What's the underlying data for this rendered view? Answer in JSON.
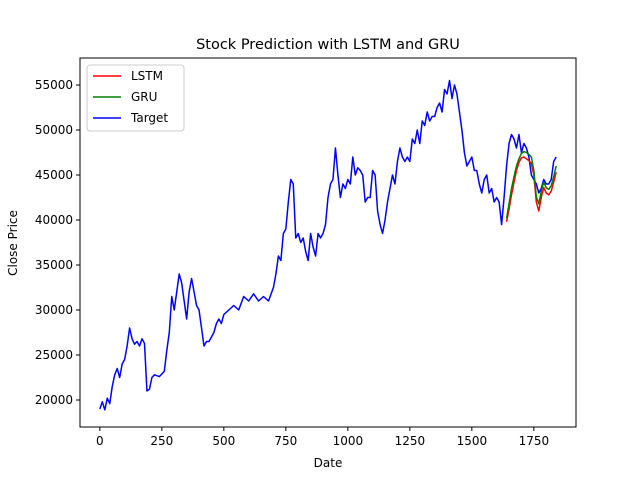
{
  "chart_data": {
    "type": "line",
    "title": "Stock Prediction with LSTM and GRU",
    "xlabel": "Date",
    "ylabel": "Close Price",
    "xlim": [
      -80,
      1920
    ],
    "ylim": [
      17000,
      58000
    ],
    "xticks": [
      0,
      250,
      500,
      750,
      1000,
      1250,
      1500,
      1750
    ],
    "yticks": [
      20000,
      25000,
      30000,
      35000,
      40000,
      45000,
      50000,
      55000
    ],
    "grid": false,
    "legend_position": "top-left",
    "series": [
      {
        "name": "LSTM",
        "color": "#ff0000",
        "x": [
          1640,
          1650,
          1660,
          1670,
          1680,
          1690,
          1700,
          1710,
          1720,
          1730,
          1740,
          1750,
          1760,
          1770,
          1780,
          1790,
          1800,
          1810,
          1820,
          1830,
          1840
        ],
        "y": [
          39800,
          41200,
          42800,
          44200,
          45500,
          46400,
          46900,
          47000,
          46800,
          46600,
          46300,
          45000,
          42000,
          41000,
          42500,
          43600,
          43000,
          42800,
          43200,
          44200,
          45300
        ]
      },
      {
        "name": "GRU",
        "color": "#008000",
        "x": [
          1640,
          1650,
          1660,
          1670,
          1680,
          1690,
          1700,
          1710,
          1720,
          1730,
          1740,
          1750,
          1760,
          1770,
          1780,
          1790,
          1800,
          1810,
          1820,
          1830,
          1840
        ],
        "y": [
          40200,
          41800,
          43500,
          44800,
          46000,
          46800,
          47400,
          47600,
          47500,
          47300,
          47000,
          45500,
          42600,
          41800,
          43200,
          44200,
          43600,
          43400,
          43800,
          44800,
          46000
        ]
      },
      {
        "name": "Target",
        "color": "#0000ff",
        "x": [
          0,
          10,
          20,
          30,
          40,
          50,
          60,
          70,
          80,
          90,
          100,
          110,
          120,
          130,
          140,
          150,
          160,
          170,
          180,
          190,
          200,
          210,
          220,
          240,
          260,
          270,
          280,
          290,
          300,
          310,
          320,
          330,
          340,
          350,
          360,
          370,
          380,
          390,
          400,
          410,
          420,
          430,
          440,
          450,
          460,
          470,
          480,
          490,
          500,
          520,
          540,
          560,
          580,
          600,
          620,
          640,
          660,
          680,
          700,
          710,
          720,
          730,
          740,
          750,
          760,
          770,
          780,
          790,
          800,
          810,
          820,
          830,
          840,
          850,
          860,
          870,
          880,
          890,
          900,
          910,
          920,
          930,
          940,
          950,
          960,
          970,
          980,
          990,
          1000,
          1010,
          1020,
          1030,
          1040,
          1050,
          1060,
          1070,
          1080,
          1090,
          1100,
          1110,
          1120,
          1130,
          1140,
          1150,
          1160,
          1170,
          1180,
          1190,
          1200,
          1210,
          1220,
          1230,
          1240,
          1250,
          1260,
          1270,
          1280,
          1290,
          1300,
          1310,
          1320,
          1330,
          1340,
          1350,
          1360,
          1370,
          1380,
          1390,
          1400,
          1410,
          1420,
          1430,
          1440,
          1450,
          1460,
          1470,
          1480,
          1490,
          1500,
          1510,
          1520,
          1530,
          1540,
          1550,
          1560,
          1570,
          1580,
          1590,
          1600,
          1610,
          1620,
          1630,
          1640,
          1650,
          1660,
          1670,
          1680,
          1690,
          1700,
          1710,
          1720,
          1730,
          1740,
          1750,
          1760,
          1770,
          1780,
          1790,
          1800,
          1810,
          1820,
          1830,
          1840
        ],
        "y": [
          19000,
          19800,
          18900,
          20200,
          19600,
          21500,
          22800,
          23500,
          22500,
          24000,
          24500,
          26000,
          28000,
          26800,
          26200,
          26500,
          26000,
          26800,
          26300,
          21000,
          21200,
          22500,
          22800,
          22600,
          23200,
          25500,
          27500,
          31500,
          30000,
          32000,
          34000,
          33000,
          31000,
          29000,
          32000,
          33500,
          32000,
          30500,
          30000,
          28000,
          26000,
          26500,
          26500,
          27000,
          27500,
          28500,
          29000,
          28500,
          29500,
          30000,
          30500,
          30000,
          31500,
          31000,
          31800,
          31000,
          31500,
          31000,
          32500,
          34000,
          36000,
          35500,
          38500,
          39000,
          42000,
          44500,
          44000,
          38000,
          38500,
          37500,
          38000,
          36500,
          35500,
          38500,
          37000,
          36000,
          38500,
          38000,
          38500,
          39500,
          42500,
          44000,
          44500,
          48000,
          45000,
          42500,
          44000,
          43500,
          44500,
          44000,
          47000,
          45000,
          45800,
          45500,
          45000,
          42000,
          42500,
          42500,
          45500,
          45000,
          41000,
          39500,
          38500,
          40000,
          42000,
          43500,
          45000,
          44000,
          46500,
          48000,
          47000,
          46500,
          47000,
          46500,
          49000,
          48500,
          50000,
          48500,
          51000,
          50500,
          52000,
          51000,
          51500,
          51500,
          52500,
          53000,
          52000,
          54500,
          54000,
          55500,
          53500,
          55000,
          54000,
          52000,
          50000,
          47500,
          46000,
          46500,
          47000,
          45500,
          45500,
          44000,
          43000,
          44500,
          45000,
          43000,
          43500,
          42000,
          42500,
          42000,
          39500,
          42500,
          46000,
          48500,
          49500,
          49000,
          48000,
          49500,
          47500,
          48500,
          48000,
          47000,
          45000,
          44500,
          44000,
          43000,
          43500,
          44500,
          44000,
          44000,
          44500,
          46500,
          47000
        ]
      }
    ]
  }
}
